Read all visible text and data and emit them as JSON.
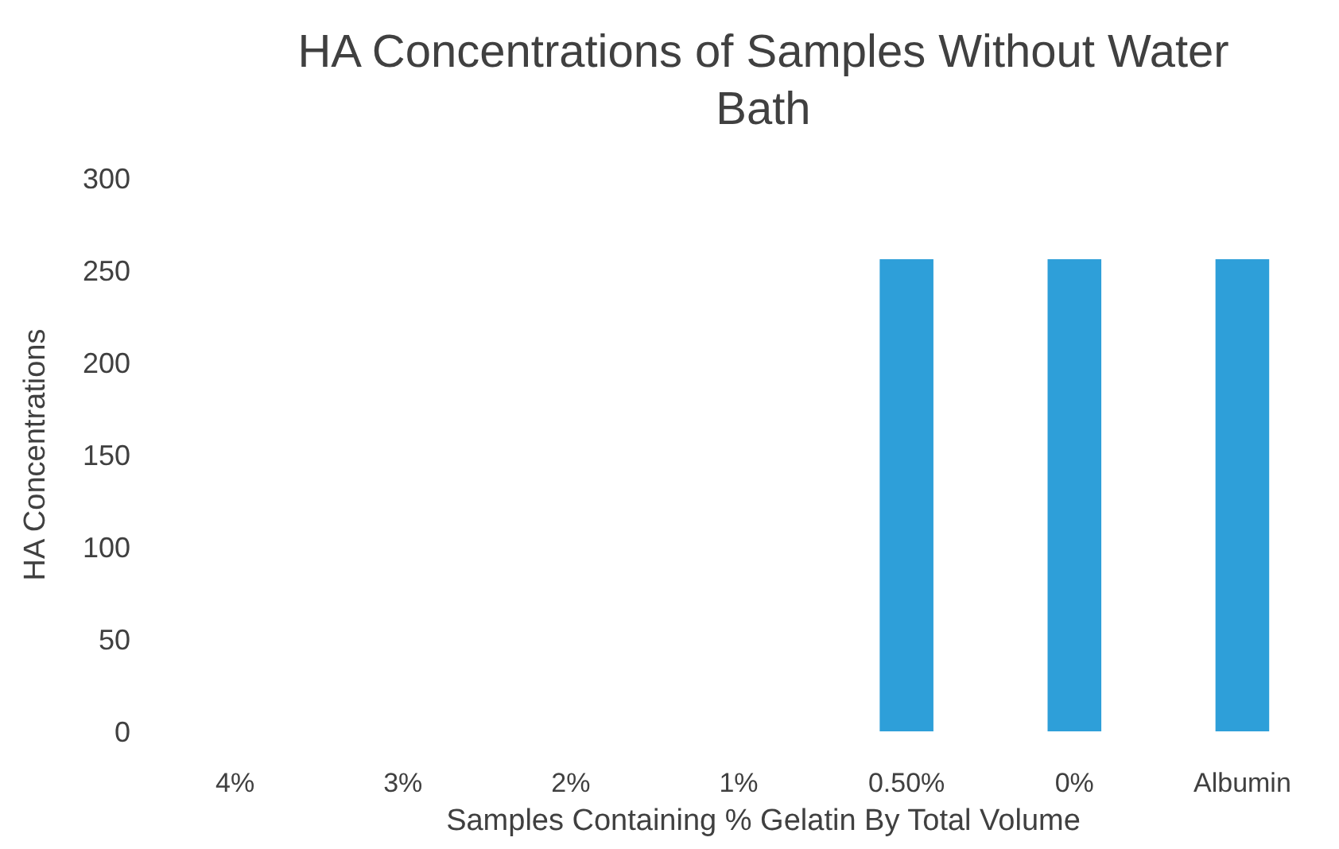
{
  "chart_data": {
    "type": "bar",
    "title": "HA Concentrations of Samples Without Water Bath",
    "xlabel": "Samples Containing % Gelatin By Total Volume",
    "ylabel": "HA Concentrations",
    "categories": [
      "4%",
      "3%",
      "2%",
      "1%",
      "0.50%",
      "0%",
      "Albumin"
    ],
    "values": [
      0,
      0,
      0,
      0,
      256,
      256,
      256
    ],
    "color": "#2e9fd9",
    "ylim": [
      0,
      300
    ],
    "yticks": [
      0,
      50,
      100,
      150,
      200,
      250,
      300
    ],
    "grid": false
  }
}
